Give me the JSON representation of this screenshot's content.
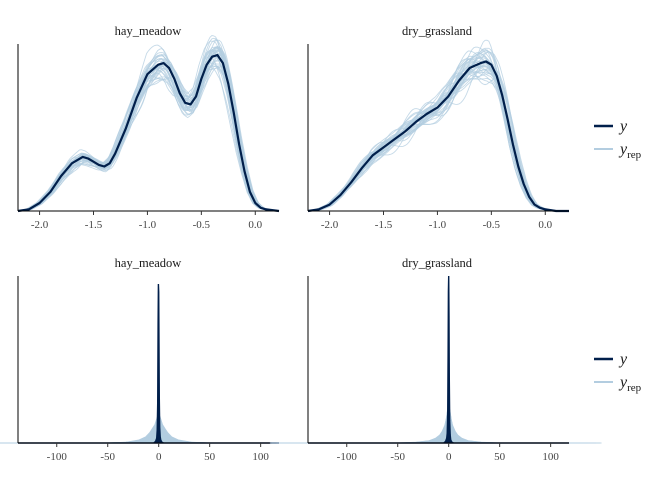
{
  "colors": {
    "y": "#011f4b",
    "y_rep": "#b3cde0",
    "axis": "#000000"
  },
  "legend": {
    "y_label": "y",
    "yrep_label": "y",
    "yrep_subscript": "rep"
  },
  "chart_data": [
    {
      "type": "area",
      "title": "hay_meadow",
      "xlim": [
        -2.2,
        0.22
      ],
      "ylim": [
        0,
        1.05
      ],
      "xticks": [
        -2.0,
        -1.5,
        -1.0,
        -0.5,
        0.0
      ],
      "xtick_labels": [
        "-2.0",
        "-1.5",
        "-1.0",
        "-0.5",
        "0.0"
      ],
      "series": [
        {
          "name": "y",
          "x": [
            -2.2,
            -2.1,
            -2.0,
            -1.9,
            -1.8,
            -1.7,
            -1.6,
            -1.55,
            -1.5,
            -1.45,
            -1.4,
            -1.35,
            -1.3,
            -1.2,
            -1.1,
            -1.0,
            -0.9,
            -0.85,
            -0.8,
            -0.75,
            -0.7,
            -0.65,
            -0.6,
            -0.55,
            -0.5,
            -0.45,
            -0.4,
            -0.35,
            -0.3,
            -0.25,
            -0.2,
            -0.15,
            -0.1,
            -0.05,
            0.0,
            0.05,
            0.1,
            0.22
          ],
          "y": [
            0.0,
            0.01,
            0.05,
            0.12,
            0.22,
            0.3,
            0.34,
            0.33,
            0.31,
            0.29,
            0.28,
            0.3,
            0.36,
            0.52,
            0.71,
            0.86,
            0.92,
            0.93,
            0.9,
            0.83,
            0.74,
            0.68,
            0.67,
            0.72,
            0.83,
            0.92,
            0.97,
            0.98,
            0.93,
            0.8,
            0.62,
            0.42,
            0.25,
            0.12,
            0.05,
            0.02,
            0.01,
            0.0
          ]
        }
      ]
    },
    {
      "type": "area",
      "title": "dry_grassland",
      "xlim": [
        -2.2,
        0.22
      ],
      "ylim": [
        0,
        1.05
      ],
      "xticks": [
        -2.0,
        -1.5,
        -1.0,
        -0.5,
        0.0
      ],
      "xtick_labels": [
        "-2.0",
        "-1.5",
        "-1.0",
        "-0.5",
        "0.0"
      ],
      "series": [
        {
          "name": "y",
          "x": [
            -2.2,
            -2.1,
            -2.0,
            -1.9,
            -1.8,
            -1.7,
            -1.6,
            -1.5,
            -1.4,
            -1.3,
            -1.2,
            -1.1,
            -1.0,
            -0.9,
            -0.8,
            -0.7,
            -0.6,
            -0.55,
            -0.5,
            -0.45,
            -0.4,
            -0.35,
            -0.3,
            -0.25,
            -0.2,
            -0.15,
            -0.1,
            -0.05,
            0.0,
            0.1,
            0.22
          ],
          "y": [
            0.0,
            0.01,
            0.04,
            0.1,
            0.18,
            0.27,
            0.35,
            0.4,
            0.45,
            0.5,
            0.56,
            0.61,
            0.65,
            0.72,
            0.82,
            0.9,
            0.93,
            0.94,
            0.92,
            0.85,
            0.73,
            0.58,
            0.42,
            0.28,
            0.17,
            0.09,
            0.04,
            0.02,
            0.01,
            0.0,
            0.0
          ]
        }
      ]
    },
    {
      "type": "area",
      "title": "hay_meadow",
      "xlim": [
        -138,
        118
      ],
      "ylim": [
        0,
        1.05
      ],
      "xticks": [
        -100,
        -50,
        0,
        50,
        100
      ],
      "xtick_labels": [
        "-100",
        "-50",
        "0",
        "50",
        "100"
      ],
      "series": [
        {
          "name": "y",
          "x": [
            -138,
            -5,
            -3,
            -2,
            -1.5,
            -1,
            -0.6,
            -0.3,
            0,
            0.3,
            0.6,
            1,
            1.5,
            2,
            3,
            5,
            118
          ],
          "y": [
            0.0,
            0.0,
            0.01,
            0.03,
            0.08,
            0.25,
            0.75,
            1.0,
            0.95,
            0.62,
            0.28,
            0.1,
            0.04,
            0.02,
            0.005,
            0.0,
            0.0
          ]
        },
        {
          "name": "y_rep",
          "x": [
            -138,
            -40,
            -25,
            -15,
            -10,
            -7,
            -5,
            -3,
            -2,
            -1,
            0,
            1,
            2,
            3,
            5,
            7,
            10,
            15,
            25,
            40,
            118
          ],
          "y": [
            0.0,
            0.0,
            0.004,
            0.015,
            0.03,
            0.05,
            0.07,
            0.09,
            0.11,
            0.13,
            0.14,
            0.13,
            0.11,
            0.09,
            0.07,
            0.05,
            0.03,
            0.015,
            0.004,
            0.0,
            0.0
          ]
        }
      ]
    },
    {
      "type": "area",
      "title": "dry_grassland",
      "xlim": [
        -138,
        118
      ],
      "ylim": [
        0,
        1.05
      ],
      "xticks": [
        -100,
        -50,
        0,
        50,
        100
      ],
      "xtick_labels": [
        "-100",
        "-50",
        "0",
        "50",
        "100"
      ],
      "series": [
        {
          "name": "y",
          "x": [
            -138,
            -5,
            -3,
            -2,
            -1.5,
            -1,
            -0.6,
            -0.3,
            0,
            0.3,
            0.6,
            1,
            1.5,
            2,
            3,
            5,
            118
          ],
          "y": [
            0.0,
            0.0,
            0.01,
            0.03,
            0.06,
            0.18,
            0.55,
            0.95,
            1.05,
            0.8,
            0.4,
            0.14,
            0.05,
            0.02,
            0.005,
            0.0,
            0.0
          ]
        },
        {
          "name": "y_rep",
          "x": [
            -138,
            -40,
            -25,
            -15,
            -10,
            -7,
            -5,
            -3,
            -2,
            -1,
            0,
            1,
            2,
            3,
            5,
            7,
            10,
            15,
            25,
            40,
            118
          ],
          "y": [
            0.0,
            0.0,
            0.004,
            0.012,
            0.025,
            0.04,
            0.06,
            0.09,
            0.12,
            0.16,
            0.18,
            0.16,
            0.12,
            0.09,
            0.06,
            0.04,
            0.025,
            0.012,
            0.004,
            0.0,
            0.0
          ]
        }
      ]
    }
  ]
}
